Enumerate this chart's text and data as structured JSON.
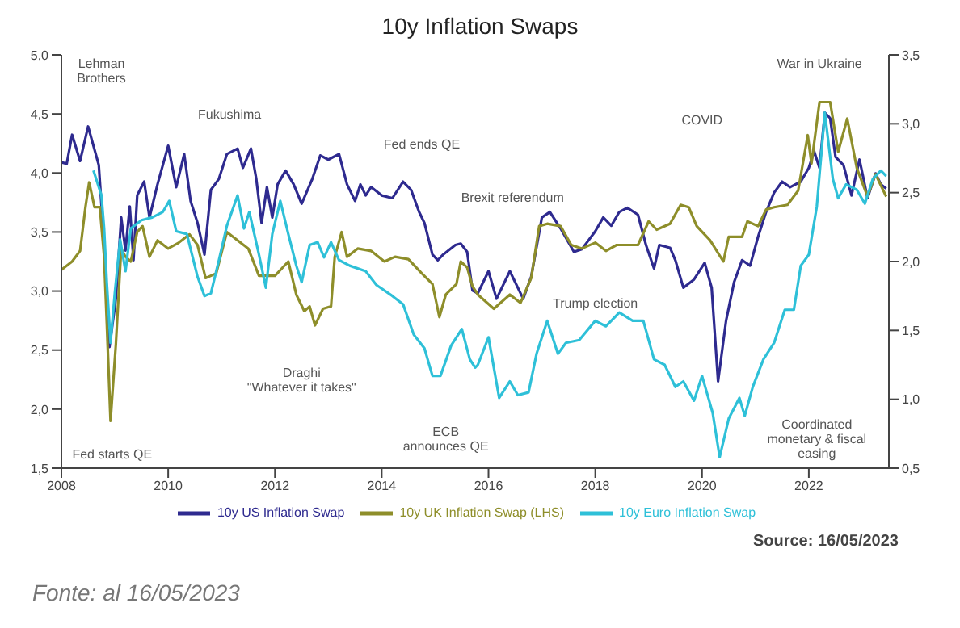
{
  "chart_data": {
    "type": "line",
    "title": "10y Inflation Swaps",
    "xlim": [
      2008,
      2023.5
    ],
    "xticks": [
      2008,
      2010,
      2012,
      2014,
      2016,
      2018,
      2020,
      2022
    ],
    "ylim": [
      1.5,
      5.0
    ],
    "yticks": [
      {
        "value": 1.5,
        "label": "1,5"
      },
      {
        "value": 2.0,
        "label": "2,0"
      },
      {
        "value": 2.5,
        "label": "2,5"
      },
      {
        "value": 3.0,
        "label": "3,0"
      },
      {
        "value": 3.5,
        "label": "3,5"
      },
      {
        "value": 4.0,
        "label": "4,0"
      },
      {
        "value": 4.5,
        "label": "4,5"
      },
      {
        "value": 5.0,
        "label": "5,0"
      }
    ],
    "y2lim": [
      0.5,
      3.5
    ],
    "y2ticks": [
      {
        "value": 0.5,
        "label": "0,5"
      },
      {
        "value": 1.0,
        "label": "1,0"
      },
      {
        "value": 1.5,
        "label": "1,5"
      },
      {
        "value": 2.0,
        "label": "2,0"
      },
      {
        "value": 2.5,
        "label": "2,5"
      },
      {
        "value": 3.0,
        "label": "3,0"
      },
      {
        "value": 3.5,
        "label": "3,5"
      }
    ],
    "grid": false,
    "legend": "bottom",
    "marker": "none",
    "line_style": "solid",
    "series": [
      {
        "name": "10y US Inflation Swap",
        "color": "#2e2a8f",
        "axis": "y2",
        "x": [
          2008.0,
          2008.1,
          2008.2,
          2008.35,
          2008.5,
          2008.6,
          2008.7,
          2008.8,
          2008.9,
          2009.02,
          2009.12,
          2009.2,
          2009.28,
          2009.35,
          2009.42,
          2009.55,
          2009.65,
          2009.8,
          2010.0,
          2010.15,
          2010.3,
          2010.42,
          2010.55,
          2010.68,
          2010.8,
          2010.95,
          2011.1,
          2011.3,
          2011.4,
          2011.55,
          2011.65,
          2011.75,
          2011.85,
          2011.95,
          2012.05,
          2012.2,
          2012.35,
          2012.5,
          2012.7,
          2012.85,
          2013.0,
          2013.2,
          2013.35,
          2013.5,
          2013.6,
          2013.7,
          2013.8,
          2014.0,
          2014.2,
          2014.4,
          2014.55,
          2014.7,
          2014.8,
          2014.95,
          2015.05,
          2015.15,
          2015.25,
          2015.38,
          2015.48,
          2015.6,
          2015.7,
          2015.8,
          2016.0,
          2016.15,
          2016.4,
          2016.65,
          2016.8,
          2017.0,
          2017.15,
          2017.35,
          2017.6,
          2017.75,
          2018.0,
          2018.15,
          2018.3,
          2018.45,
          2018.6,
          2018.8,
          2018.95,
          2019.1,
          2019.2,
          2019.4,
          2019.5,
          2019.65,
          2019.85,
          2020.05,
          2020.18,
          2020.3,
          2020.45,
          2020.6,
          2020.75,
          2020.9,
          2021.05,
          2021.2,
          2021.35,
          2021.5,
          2021.65,
          2021.85,
          2022.0,
          2022.1,
          2022.2,
          2022.3,
          2022.4,
          2022.5,
          2022.65,
          2022.8,
          2022.95,
          2023.1,
          2023.25,
          2023.35,
          2023.45
        ],
        "values": [
          2.72,
          2.71,
          2.92,
          2.73,
          2.98,
          2.84,
          2.7,
          2.12,
          1.38,
          1.73,
          2.32,
          2.08,
          2.4,
          2.01,
          2.48,
          2.58,
          2.32,
          2.56,
          2.84,
          2.54,
          2.78,
          2.44,
          2.28,
          2.05,
          2.52,
          2.6,
          2.78,
          2.82,
          2.68,
          2.82,
          2.6,
          2.28,
          2.54,
          2.32,
          2.56,
          2.66,
          2.56,
          2.42,
          2.6,
          2.77,
          2.74,
          2.78,
          2.56,
          2.44,
          2.56,
          2.48,
          2.54,
          2.48,
          2.46,
          2.58,
          2.52,
          2.36,
          2.28,
          2.05,
          2.01,
          2.05,
          2.08,
          2.12,
          2.13,
          2.07,
          1.79,
          1.77,
          1.93,
          1.73,
          1.93,
          1.73,
          1.89,
          2.32,
          2.36,
          2.24,
          2.07,
          2.09,
          2.22,
          2.32,
          2.26,
          2.36,
          2.39,
          2.34,
          2.12,
          1.95,
          2.12,
          2.1,
          2.01,
          1.81,
          1.87,
          1.99,
          1.81,
          1.13,
          1.57,
          1.85,
          2.01,
          1.97,
          2.18,
          2.36,
          2.5,
          2.58,
          2.54,
          2.58,
          2.68,
          2.8,
          2.68,
          3.08,
          3.04,
          2.76,
          2.7,
          2.48,
          2.74,
          2.46,
          2.64,
          2.56,
          2.53
        ]
      },
      {
        "name": "10y UK Inflation Swap (LHS)",
        "color": "#8e8e2a",
        "x": [
          2008.0,
          2008.2,
          2008.35,
          2008.45,
          2008.52,
          2008.62,
          2008.72,
          2008.8,
          2008.85,
          2008.92,
          2009.02,
          2009.12,
          2009.2,
          2009.3,
          2009.42,
          2009.52,
          2009.65,
          2009.8,
          2010.0,
          2010.2,
          2010.4,
          2010.55,
          2010.7,
          2010.9,
          2011.1,
          2011.3,
          2011.5,
          2011.7,
          2012.0,
          2012.25,
          2012.4,
          2012.55,
          2012.65,
          2012.75,
          2012.9,
          2013.05,
          2013.12,
          2013.25,
          2013.35,
          2013.55,
          2013.8,
          2014.05,
          2014.25,
          2014.5,
          2014.75,
          2014.95,
          2015.08,
          2015.2,
          2015.4,
          2015.48,
          2015.6,
          2015.7,
          2015.8,
          2016.1,
          2016.4,
          2016.6,
          2016.8,
          2016.95,
          2017.1,
          2017.35,
          2017.55,
          2017.75,
          2018.0,
          2018.2,
          2018.4,
          2018.8,
          2019.0,
          2019.15,
          2019.4,
          2019.6,
          2019.75,
          2019.9,
          2020.15,
          2020.4,
          2020.5,
          2020.75,
          2020.85,
          2021.05,
          2021.2,
          2021.35,
          2021.6,
          2021.8,
          2021.98,
          2022.05,
          2022.2,
          2022.4,
          2022.55,
          2022.72,
          2022.9,
          2023.1,
          2023.25,
          2023.45
        ],
        "values": [
          3.18,
          3.25,
          3.34,
          3.71,
          3.92,
          3.71,
          3.71,
          3.29,
          2.73,
          1.9,
          2.55,
          3.36,
          3.29,
          3.25,
          3.5,
          3.55,
          3.29,
          3.43,
          3.36,
          3.41,
          3.48,
          3.39,
          3.11,
          3.15,
          3.5,
          3.43,
          3.36,
          3.13,
          3.13,
          3.25,
          2.97,
          2.83,
          2.87,
          2.71,
          2.85,
          2.87,
          3.29,
          3.5,
          3.29,
          3.36,
          3.34,
          3.25,
          3.29,
          3.27,
          3.15,
          3.06,
          2.78,
          2.97,
          3.06,
          3.25,
          3.2,
          3.04,
          2.97,
          2.85,
          2.97,
          2.9,
          3.11,
          3.55,
          3.57,
          3.55,
          3.39,
          3.36,
          3.41,
          3.34,
          3.39,
          3.39,
          3.59,
          3.52,
          3.57,
          3.73,
          3.71,
          3.55,
          3.43,
          3.25,
          3.46,
          3.46,
          3.59,
          3.55,
          3.69,
          3.71,
          3.73,
          3.85,
          4.32,
          4.08,
          4.6,
          4.6,
          4.18,
          4.46,
          4.04,
          3.8,
          3.99,
          3.8
        ]
      },
      {
        "name": "10y Euro Inflation Swap",
        "color": "#2ec0d8",
        "axis": "y2",
        "x": [
          2008.6,
          2008.75,
          2008.8,
          2008.85,
          2008.92,
          2009.0,
          2009.1,
          2009.2,
          2009.3,
          2009.5,
          2009.7,
          2009.9,
          2010.02,
          2010.15,
          2010.35,
          2010.55,
          2010.68,
          2010.8,
          2010.95,
          2011.1,
          2011.3,
          2011.42,
          2011.52,
          2011.7,
          2011.83,
          2011.95,
          2012.1,
          2012.25,
          2012.4,
          2012.5,
          2012.65,
          2012.8,
          2012.92,
          2013.05,
          2013.2,
          2013.4,
          2013.7,
          2013.9,
          2014.2,
          2014.4,
          2014.6,
          2014.8,
          2014.95,
          2015.1,
          2015.3,
          2015.5,
          2015.65,
          2015.75,
          2015.8,
          2016.0,
          2016.2,
          2016.4,
          2016.55,
          2016.75,
          2016.9,
          2017.1,
          2017.3,
          2017.45,
          2017.7,
          2018.0,
          2018.2,
          2018.45,
          2018.7,
          2018.9,
          2019.1,
          2019.3,
          2019.5,
          2019.65,
          2019.85,
          2020.0,
          2020.2,
          2020.33,
          2020.5,
          2020.7,
          2020.8,
          2020.95,
          2021.15,
          2021.35,
          2021.55,
          2021.72,
          2021.85,
          2022.0,
          2022.15,
          2022.3,
          2022.45,
          2022.55,
          2022.7,
          2022.9,
          2023.05,
          2023.2,
          2023.35,
          2023.45
        ],
        "values": [
          2.66,
          2.48,
          2.24,
          1.85,
          1.41,
          1.77,
          2.16,
          1.93,
          2.24,
          2.3,
          2.32,
          2.36,
          2.44,
          2.22,
          2.2,
          1.89,
          1.75,
          1.77,
          2.01,
          2.26,
          2.48,
          2.24,
          2.36,
          2.05,
          1.81,
          2.2,
          2.44,
          2.2,
          1.97,
          1.85,
          2.12,
          2.14,
          2.03,
          2.14,
          2.01,
          1.97,
          1.93,
          1.83,
          1.75,
          1.69,
          1.47,
          1.37,
          1.17,
          1.17,
          1.39,
          1.51,
          1.29,
          1.23,
          1.25,
          1.45,
          1.01,
          1.13,
          1.03,
          1.05,
          1.33,
          1.57,
          1.33,
          1.41,
          1.43,
          1.57,
          1.53,
          1.63,
          1.57,
          1.57,
          1.29,
          1.25,
          1.09,
          1.13,
          0.99,
          1.17,
          0.9,
          0.58,
          0.86,
          1.01,
          0.88,
          1.09,
          1.29,
          1.41,
          1.65,
          1.65,
          1.97,
          2.05,
          2.4,
          3.08,
          2.6,
          2.46,
          2.56,
          2.52,
          2.42,
          2.6,
          2.66,
          2.62
        ]
      }
    ],
    "annotations": [
      "Lehman Brothers",
      "Fukushima",
      "Fed ends QE",
      "Brexit referendum",
      "Trump election",
      "COVID",
      "War in Ukraine",
      "Coordinated monetary & fiscal easing",
      "ECB announces QE",
      "Draghi \"Whatever it takes\"",
      "Fed starts QE",
      "Source: 16/05/2023",
      "Fonte: al 16/05/2023"
    ]
  }
}
